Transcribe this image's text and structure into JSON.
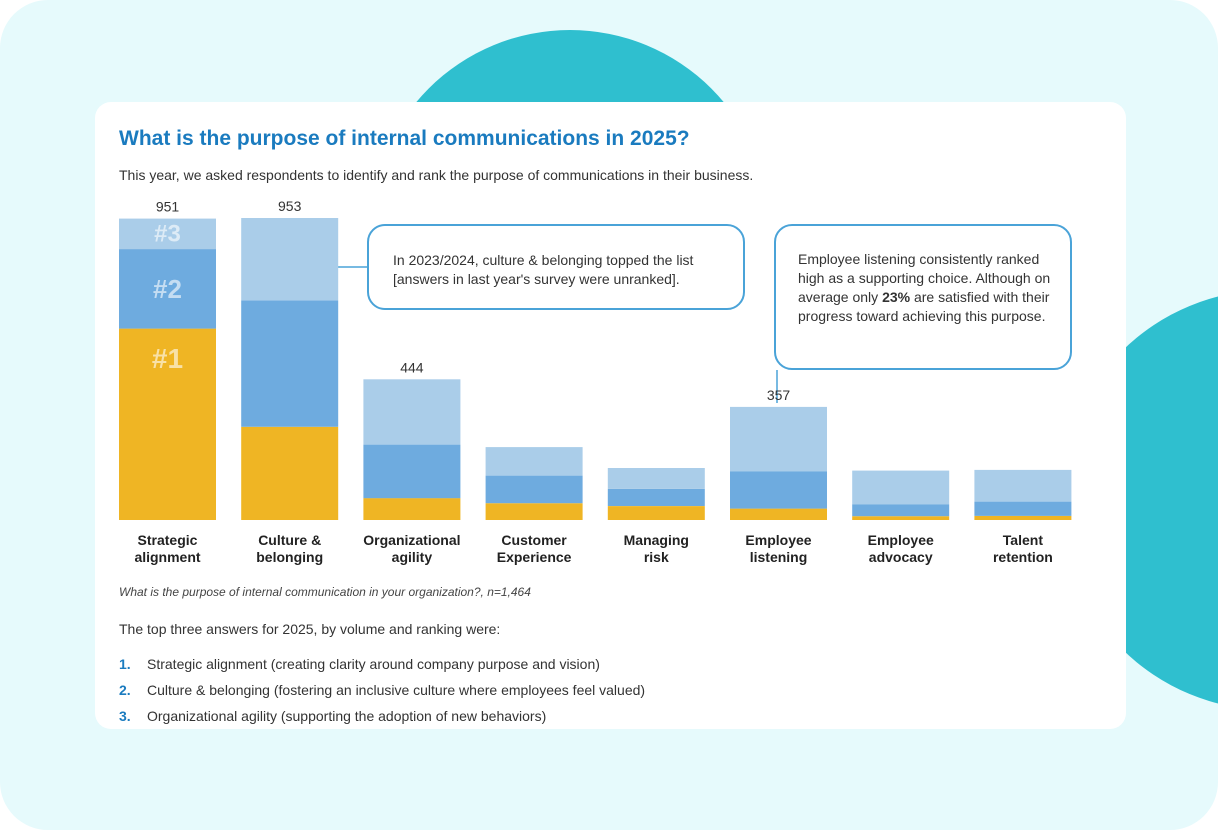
{
  "title": "What is the purpose of internal communications in 2025?",
  "subtitle": "This year, we asked respondents to identify and rank the purpose of communications in their business.",
  "colors": {
    "rank1": "#efb524",
    "rank2": "#6eabdf",
    "rank3": "#aacde9",
    "accent": "#1a7bbf",
    "callout_border": "#4aa3d8",
    "background": "#e6fafc",
    "decor": "#2fbfcf"
  },
  "chart_data": {
    "type": "bar",
    "stacked": true,
    "categories": [
      [
        "Strategic",
        "alignment"
      ],
      [
        "Culture &",
        "belonging"
      ],
      [
        "Organizational",
        "agility"
      ],
      [
        "Customer",
        "Experience"
      ],
      [
        "Managing",
        "risk"
      ],
      [
        "Employee",
        "listening"
      ],
      [
        "Employee",
        "advocacy"
      ],
      [
        "Talent",
        "retention"
      ]
    ],
    "series": [
      {
        "name": "#1",
        "values": [
          604,
          294,
          69,
          53,
          44,
          36,
          12,
          13
        ]
      },
      {
        "name": "#2",
        "values": [
          251,
          399,
          169,
          87,
          54,
          118,
          38,
          45
        ]
      },
      {
        "name": "#3",
        "values": [
          96,
          260,
          206,
          90,
          66,
          203,
          106,
          100
        ]
      }
    ],
    "data_labels": [
      "951",
      "953",
      "444",
      "",
      "",
      "357",
      "",
      ""
    ],
    "rank_labels": [
      "#1",
      "#2",
      "#3"
    ],
    "ylim": [
      0,
      953
    ],
    "grid": false,
    "legend": "inside first bar"
  },
  "callouts": {
    "culture": "In 2023/2024, culture & belonging topped the list [answers in last year's survey were unranked].",
    "listening_pre": "Employee listening consistently ranked high as a supporting choice. Although on average only ",
    "listening_bold": "23%",
    "listening_post": " are satisfied with their progress toward achieving this purpose."
  },
  "note": "What is the purpose of internal communication in your organization?, n=1,464",
  "intro": "The top three answers for 2025, by volume and ranking were:",
  "top_answers": [
    {
      "num": "1.",
      "text": "Strategic alignment (creating clarity around company purpose and vision)"
    },
    {
      "num": "2.",
      "text": "Culture & belonging (fostering an inclusive culture where employees feel valued)"
    },
    {
      "num": "3.",
      "text": "Organizational agility (supporting the adoption of new behaviors)"
    }
  ]
}
